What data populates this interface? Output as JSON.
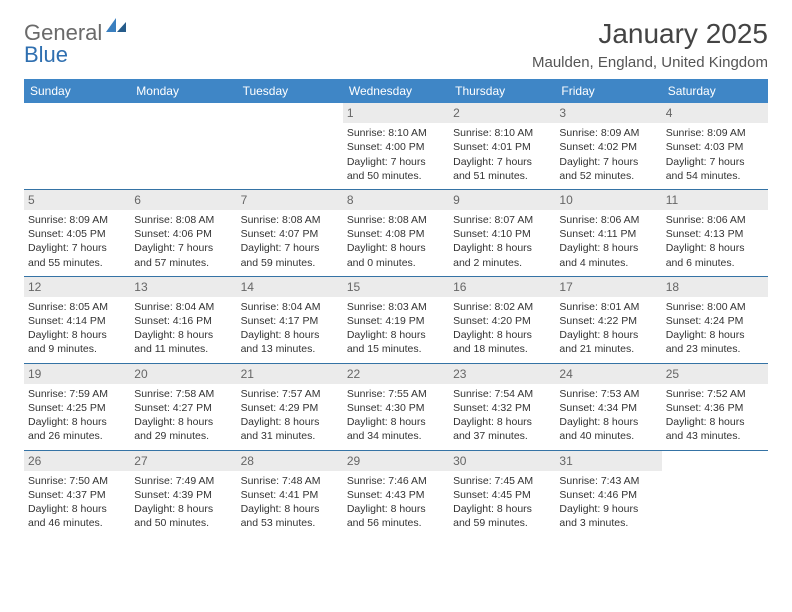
{
  "logo": {
    "word1": "General",
    "word2": "Blue"
  },
  "title": "January 2025",
  "subtitle": "Maulden, England, United Kingdom",
  "colors": {
    "header_bg": "#3f86c6",
    "header_text": "#ffffff",
    "row_divider": "#3573a5",
    "daynum_bg": "#ebebeb",
    "daynum_text": "#666666",
    "body_text": "#333333",
    "logo_gray": "#6a6a6a",
    "logo_blue": "#2f6fb0"
  },
  "day_headers": [
    "Sunday",
    "Monday",
    "Tuesday",
    "Wednesday",
    "Thursday",
    "Friday",
    "Saturday"
  ],
  "weeks": [
    [
      {
        "n": "",
        "lines": []
      },
      {
        "n": "",
        "lines": []
      },
      {
        "n": "",
        "lines": []
      },
      {
        "n": "1",
        "lines": [
          "Sunrise: 8:10 AM",
          "Sunset: 4:00 PM",
          "Daylight: 7 hours and 50 minutes."
        ]
      },
      {
        "n": "2",
        "lines": [
          "Sunrise: 8:10 AM",
          "Sunset: 4:01 PM",
          "Daylight: 7 hours and 51 minutes."
        ]
      },
      {
        "n": "3",
        "lines": [
          "Sunrise: 8:09 AM",
          "Sunset: 4:02 PM",
          "Daylight: 7 hours and 52 minutes."
        ]
      },
      {
        "n": "4",
        "lines": [
          "Sunrise: 8:09 AM",
          "Sunset: 4:03 PM",
          "Daylight: 7 hours and 54 minutes."
        ]
      }
    ],
    [
      {
        "n": "5",
        "lines": [
          "Sunrise: 8:09 AM",
          "Sunset: 4:05 PM",
          "Daylight: 7 hours and 55 minutes."
        ]
      },
      {
        "n": "6",
        "lines": [
          "Sunrise: 8:08 AM",
          "Sunset: 4:06 PM",
          "Daylight: 7 hours and 57 minutes."
        ]
      },
      {
        "n": "7",
        "lines": [
          "Sunrise: 8:08 AM",
          "Sunset: 4:07 PM",
          "Daylight: 7 hours and 59 minutes."
        ]
      },
      {
        "n": "8",
        "lines": [
          "Sunrise: 8:08 AM",
          "Sunset: 4:08 PM",
          "Daylight: 8 hours and 0 minutes."
        ]
      },
      {
        "n": "9",
        "lines": [
          "Sunrise: 8:07 AM",
          "Sunset: 4:10 PM",
          "Daylight: 8 hours and 2 minutes."
        ]
      },
      {
        "n": "10",
        "lines": [
          "Sunrise: 8:06 AM",
          "Sunset: 4:11 PM",
          "Daylight: 8 hours and 4 minutes."
        ]
      },
      {
        "n": "11",
        "lines": [
          "Sunrise: 8:06 AM",
          "Sunset: 4:13 PM",
          "Daylight: 8 hours and 6 minutes."
        ]
      }
    ],
    [
      {
        "n": "12",
        "lines": [
          "Sunrise: 8:05 AM",
          "Sunset: 4:14 PM",
          "Daylight: 8 hours and 9 minutes."
        ]
      },
      {
        "n": "13",
        "lines": [
          "Sunrise: 8:04 AM",
          "Sunset: 4:16 PM",
          "Daylight: 8 hours and 11 minutes."
        ]
      },
      {
        "n": "14",
        "lines": [
          "Sunrise: 8:04 AM",
          "Sunset: 4:17 PM",
          "Daylight: 8 hours and 13 minutes."
        ]
      },
      {
        "n": "15",
        "lines": [
          "Sunrise: 8:03 AM",
          "Sunset: 4:19 PM",
          "Daylight: 8 hours and 15 minutes."
        ]
      },
      {
        "n": "16",
        "lines": [
          "Sunrise: 8:02 AM",
          "Sunset: 4:20 PM",
          "Daylight: 8 hours and 18 minutes."
        ]
      },
      {
        "n": "17",
        "lines": [
          "Sunrise: 8:01 AM",
          "Sunset: 4:22 PM",
          "Daylight: 8 hours and 21 minutes."
        ]
      },
      {
        "n": "18",
        "lines": [
          "Sunrise: 8:00 AM",
          "Sunset: 4:24 PM",
          "Daylight: 8 hours and 23 minutes."
        ]
      }
    ],
    [
      {
        "n": "19",
        "lines": [
          "Sunrise: 7:59 AM",
          "Sunset: 4:25 PM",
          "Daylight: 8 hours and 26 minutes."
        ]
      },
      {
        "n": "20",
        "lines": [
          "Sunrise: 7:58 AM",
          "Sunset: 4:27 PM",
          "Daylight: 8 hours and 29 minutes."
        ]
      },
      {
        "n": "21",
        "lines": [
          "Sunrise: 7:57 AM",
          "Sunset: 4:29 PM",
          "Daylight: 8 hours and 31 minutes."
        ]
      },
      {
        "n": "22",
        "lines": [
          "Sunrise: 7:55 AM",
          "Sunset: 4:30 PM",
          "Daylight: 8 hours and 34 minutes."
        ]
      },
      {
        "n": "23",
        "lines": [
          "Sunrise: 7:54 AM",
          "Sunset: 4:32 PM",
          "Daylight: 8 hours and 37 minutes."
        ]
      },
      {
        "n": "24",
        "lines": [
          "Sunrise: 7:53 AM",
          "Sunset: 4:34 PM",
          "Daylight: 8 hours and 40 minutes."
        ]
      },
      {
        "n": "25",
        "lines": [
          "Sunrise: 7:52 AM",
          "Sunset: 4:36 PM",
          "Daylight: 8 hours and 43 minutes."
        ]
      }
    ],
    [
      {
        "n": "26",
        "lines": [
          "Sunrise: 7:50 AM",
          "Sunset: 4:37 PM",
          "Daylight: 8 hours and 46 minutes."
        ]
      },
      {
        "n": "27",
        "lines": [
          "Sunrise: 7:49 AM",
          "Sunset: 4:39 PM",
          "Daylight: 8 hours and 50 minutes."
        ]
      },
      {
        "n": "28",
        "lines": [
          "Sunrise: 7:48 AM",
          "Sunset: 4:41 PM",
          "Daylight: 8 hours and 53 minutes."
        ]
      },
      {
        "n": "29",
        "lines": [
          "Sunrise: 7:46 AM",
          "Sunset: 4:43 PM",
          "Daylight: 8 hours and 56 minutes."
        ]
      },
      {
        "n": "30",
        "lines": [
          "Sunrise: 7:45 AM",
          "Sunset: 4:45 PM",
          "Daylight: 8 hours and 59 minutes."
        ]
      },
      {
        "n": "31",
        "lines": [
          "Sunrise: 7:43 AM",
          "Sunset: 4:46 PM",
          "Daylight: 9 hours and 3 minutes."
        ]
      },
      {
        "n": "",
        "lines": []
      }
    ]
  ]
}
